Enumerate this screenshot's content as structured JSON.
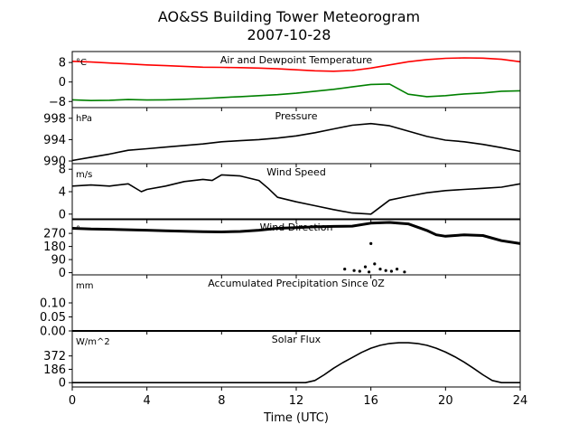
{
  "chart_data": {
    "type": "line",
    "title": "AO&SS Building Tower Meteorogram",
    "subtitle": "2007-10-28",
    "xlabel": "Time (UTC)",
    "xlim": [
      0,
      24
    ],
    "xticks": [
      "0",
      "4",
      "8",
      "12",
      "16",
      "20",
      "24"
    ],
    "panels": [
      {
        "name": "temperature",
        "title": "Air and Dewpoint Temperature",
        "unit": "°C",
        "ylim": [
          -10.5,
          12.5
        ],
        "yticks": [
          8,
          0,
          -8
        ],
        "ytick_labels": [
          "8",
          "0",
          "−8"
        ],
        "series": [
          {
            "color": "#ff0000",
            "x": [
              0,
              1,
              2,
              3,
              4,
              5,
              6,
              7,
              8,
              9,
              10,
              11,
              12,
              13,
              14,
              15,
              16,
              17,
              18,
              19,
              20,
              21,
              22,
              23,
              24
            ],
            "values": [
              8.5,
              8.2,
              7.8,
              7.4,
              7.0,
              6.7,
              6.4,
              6.1,
              6.0,
              5.9,
              5.7,
              5.4,
              5.0,
              4.6,
              4.4,
              4.7,
              5.7,
              7.0,
              8.3,
              9.2,
              9.7,
              9.9,
              9.8,
              9.3,
              8.3
            ]
          },
          {
            "color": "#008000",
            "x": [
              0,
              1,
              2,
              3,
              4,
              5,
              6,
              7,
              8,
              9,
              10,
              11,
              12,
              13,
              14,
              15,
              16,
              17,
              18,
              19,
              20,
              21,
              22,
              23,
              24
            ],
            "values": [
              -7.3,
              -7.6,
              -7.5,
              -7.2,
              -7.4,
              -7.3,
              -7.1,
              -6.8,
              -6.4,
              -6.0,
              -5.6,
              -5.2,
              -4.6,
              -3.8,
              -3.0,
              -2.0,
              -1.0,
              -0.8,
              -5.0,
              -6.0,
              -5.6,
              -4.9,
              -4.5,
              -3.8,
              -3.6
            ]
          }
        ]
      },
      {
        "name": "pressure",
        "title": "Pressure",
        "unit": "hPa",
        "ylim": [
          989.5,
          1000
        ],
        "yticks": [
          998,
          994,
          990
        ],
        "series": [
          {
            "color": "#000000",
            "x": [
              0,
              1,
              2,
              3,
              4,
              5,
              6,
              7,
              8,
              9,
              10,
              11,
              12,
              13,
              14,
              15,
              16,
              17,
              18,
              19,
              20,
              21,
              22,
              23,
              24
            ],
            "values": [
              990.1,
              990.7,
              991.3,
              992.0,
              992.3,
              992.6,
              992.9,
              993.2,
              993.6,
              993.8,
              994.0,
              994.3,
              994.7,
              995.3,
              996.0,
              996.7,
              997.0,
              996.6,
              995.6,
              994.6,
              993.9,
              993.6,
              993.1,
              992.5,
              991.8
            ]
          }
        ]
      },
      {
        "name": "wind_speed",
        "title": "Wind Speed",
        "unit": "m/s",
        "ylim": [
          -1,
          9
        ],
        "yticks": [
          8,
          4,
          0
        ],
        "series": [
          {
            "color": "#000000",
            "x": [
              0,
              1,
              2,
              3,
              3.7,
              4,
              5,
              6,
              7,
              7.5,
              8,
              9,
              10,
              10.5,
              11,
              12,
              13,
              14,
              15,
              16,
              17,
              18,
              19,
              20,
              21,
              22,
              23,
              24
            ],
            "values": [
              5.0,
              5.2,
              5.0,
              5.4,
              4.0,
              4.4,
              5.0,
              5.8,
              6.2,
              6.0,
              7.0,
              6.8,
              6.0,
              4.6,
              3.0,
              2.2,
              1.5,
              0.8,
              0.2,
              0.0,
              2.5,
              3.2,
              3.8,
              4.2,
              4.4,
              4.6,
              4.8,
              5.4
            ]
          }
        ]
      },
      {
        "name": "wind_direction",
        "title": "Wind Direction",
        "unit": "°",
        "ylim": [
          -15,
          370
        ],
        "yticks": [
          270,
          180,
          90,
          0
        ],
        "series": [
          {
            "color": "#000000",
            "x": [
              0,
              1,
              2,
              3,
              4,
              5,
              6,
              7,
              8,
              9,
              10,
              11,
              12,
              13,
              14,
              15,
              16,
              17,
              18,
              19,
              19.5,
              20,
              21,
              22,
              23,
              24
            ],
            "values": [
              305,
              300,
              298,
              295,
              292,
              288,
              285,
              282,
              280,
              283,
              292,
              305,
              310,
              315,
              318,
              320,
              340,
              345,
              335,
              290,
              260,
              250,
              260,
              255,
              220,
              200
            ]
          },
          {
            "color": "#000000",
            "x": [
              14.6,
              15.1,
              15.4,
              15.7,
              15.9,
              16.0,
              16.2,
              16.5,
              16.8,
              17.1,
              17.4,
              17.8
            ],
            "values": [
              25,
              15,
              10,
              40,
              5,
              200,
              60,
              25,
              15,
              10,
              25,
              5
            ]
          }
        ]
      },
      {
        "name": "precipitation",
        "title": "Accumulated Precipitation Since 0Z",
        "unit": "mm",
        "ylim": [
          0,
          0.2
        ],
        "yticks": [
          0.1,
          0.05,
          0.0
        ],
        "ytick_labels": [
          "0.10",
          "0.05",
          "0.00"
        ],
        "series": [
          {
            "color": "#000000",
            "x": [
              0,
              24
            ],
            "values": [
              0,
              0
            ]
          }
        ]
      },
      {
        "name": "solar_flux",
        "title": "Solar Flux",
        "unit": "W/m^2",
        "ylim": [
          -60,
          720
        ],
        "yticks": [
          372,
          186,
          0
        ],
        "series": [
          {
            "color": "#000000",
            "x": [
              0,
              12.5,
              13,
              13.5,
              14,
              14.5,
              15,
              15.5,
              16,
              16.5,
              17,
              17.5,
              18,
              18.5,
              19,
              19.5,
              20,
              20.5,
              21,
              21.5,
              22,
              22.5,
              23,
              24
            ],
            "values": [
              0,
              0,
              30,
              110,
              200,
              280,
              350,
              420,
              480,
              520,
              545,
              555,
              555,
              545,
              520,
              480,
              425,
              360,
              285,
              200,
              110,
              30,
              0,
              0
            ]
          }
        ]
      }
    ]
  }
}
